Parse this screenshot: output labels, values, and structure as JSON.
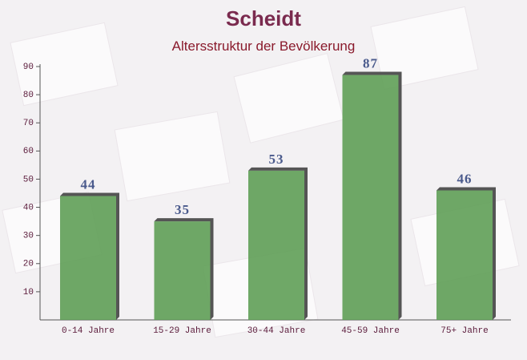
{
  "chart_data": {
    "type": "bar",
    "title": "Scheidt",
    "subtitle": "Altersstruktur der Bevölkerung",
    "categories": [
      "0-14 Jahre",
      "15-29 Jahre",
      "30-44 Jahre",
      "45-59 Jahre",
      "75+ Jahre"
    ],
    "values": [
      44,
      35,
      53,
      87,
      46
    ],
    "color": "#5f9e57",
    "ylim": [
      0,
      90
    ],
    "yticks": [
      10,
      20,
      30,
      40,
      50,
      60,
      70,
      80,
      90
    ]
  }
}
